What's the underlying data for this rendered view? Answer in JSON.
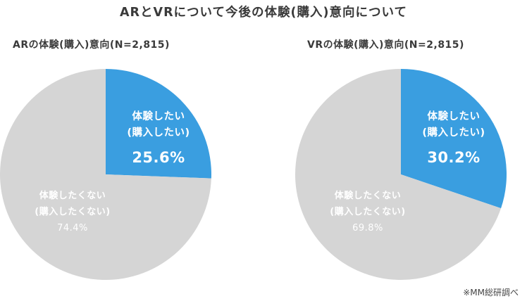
{
  "title": "ARとVRについて今後の体験(購入)意向について",
  "note": "※MM総研調べ",
  "colors": {
    "want": "#3a9ee0",
    "not_want": "#d5d5d5"
  },
  "chart_data": [
    {
      "type": "pie",
      "title": "ARの体験(購入)意向(N=2,815)",
      "slices": [
        {
          "label_line1": "体験したい",
          "label_line2": "(購入したい)",
          "value_text": "25.6%",
          "value": 25.6
        },
        {
          "label_line1": "体験したくない",
          "label_line2": "(購入したくない)",
          "value_text": "74.4%",
          "value": 74.4
        }
      ]
    },
    {
      "type": "pie",
      "title": "VRの体験(購入)意向(N=2,815)",
      "slices": [
        {
          "label_line1": "体験したい",
          "label_line2": "(購入したい)",
          "value_text": "30.2%",
          "value": 30.2
        },
        {
          "label_line1": "体験したくない",
          "label_line2": "(購入したくない)",
          "value_text": "69.8%",
          "value": 69.8
        }
      ]
    }
  ]
}
